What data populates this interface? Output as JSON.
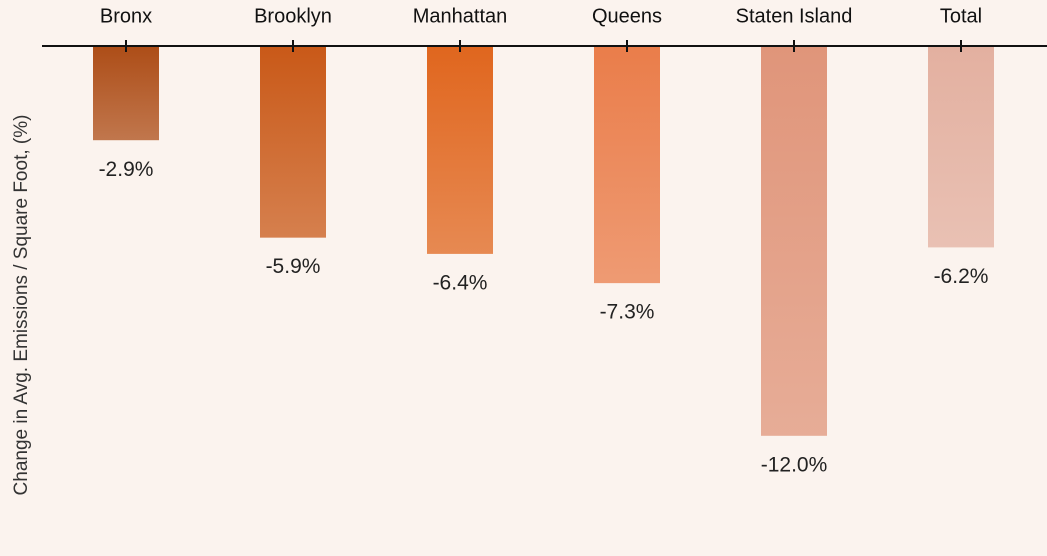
{
  "chart_data": {
    "type": "bar",
    "y_label": "Change in Avg. Emissions / Square Foot, (%)",
    "categories": [
      "Bronx",
      "Brooklyn",
      "Manhattan",
      "Queens",
      "Staten Island",
      "Total"
    ],
    "values": [
      -2.9,
      -5.9,
      -6.4,
      -7.3,
      -12.0,
      -6.2
    ],
    "value_labels": [
      "-2.9%",
      "-5.9%",
      "-6.4%",
      "-7.3%",
      "-12.0%",
      "-6.2%"
    ],
    "colors": [
      "#ad4d17",
      "#c95918",
      "#e0661e",
      "#ea7d4a",
      "#e0957a",
      "#e3b0a0"
    ],
    "ylim": [
      -15.7,
      0
    ],
    "x_axis_position": "top"
  }
}
